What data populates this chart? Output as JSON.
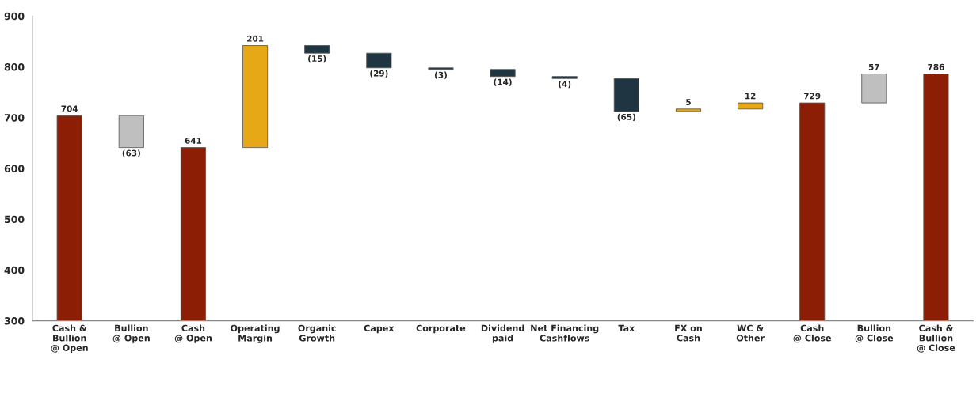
{
  "chart_data": {
    "type": "bar",
    "categories": [
      "Cash &\nBullion\n@ Open",
      "Bullion\n@ Open",
      "Cash\n@ Open",
      "Operating\nMargin",
      "Organic\nGrowth",
      "Capex",
      "Corporate",
      "Dividend\npaid",
      "Net Financing\nCashflows",
      "Tax",
      "FX on\nCash",
      "WC &\nOther",
      "Cash\n@ Close",
      "Bullion\n@ Close",
      "Cash &\nBullion\n@ Close"
    ],
    "values": [
      704,
      -63,
      641,
      201,
      -15,
      -29,
      -3,
      -14,
      -4,
      -65,
      5,
      12,
      729,
      57,
      786
    ],
    "base": [
      0,
      704,
      0,
      641,
      842,
      827,
      798,
      795,
      781,
      777,
      712,
      717,
      0,
      729,
      0
    ],
    "colors": [
      "#8b1e04",
      "#bfbfbf",
      "#8b1e04",
      "#e6a817",
      "#1f3541",
      "#1f3541",
      "#1f3541",
      "#1f3541",
      "#1f3541",
      "#1f3541",
      "#e6a817",
      "#e6a817",
      "#8b1e04",
      "#bfbfbf",
      "#8b1e04"
    ],
    "value_labels": [
      "704",
      "(63)",
      "641",
      "201",
      "(15)",
      "(29)",
      "(3)",
      "(14)",
      "(4)",
      "(65)",
      "5",
      "12",
      "729",
      "57",
      "786"
    ],
    "ylim": [
      300,
      900
    ],
    "yticks": [
      300,
      400,
      500,
      600,
      700,
      800,
      900
    ],
    "grid": false
  }
}
